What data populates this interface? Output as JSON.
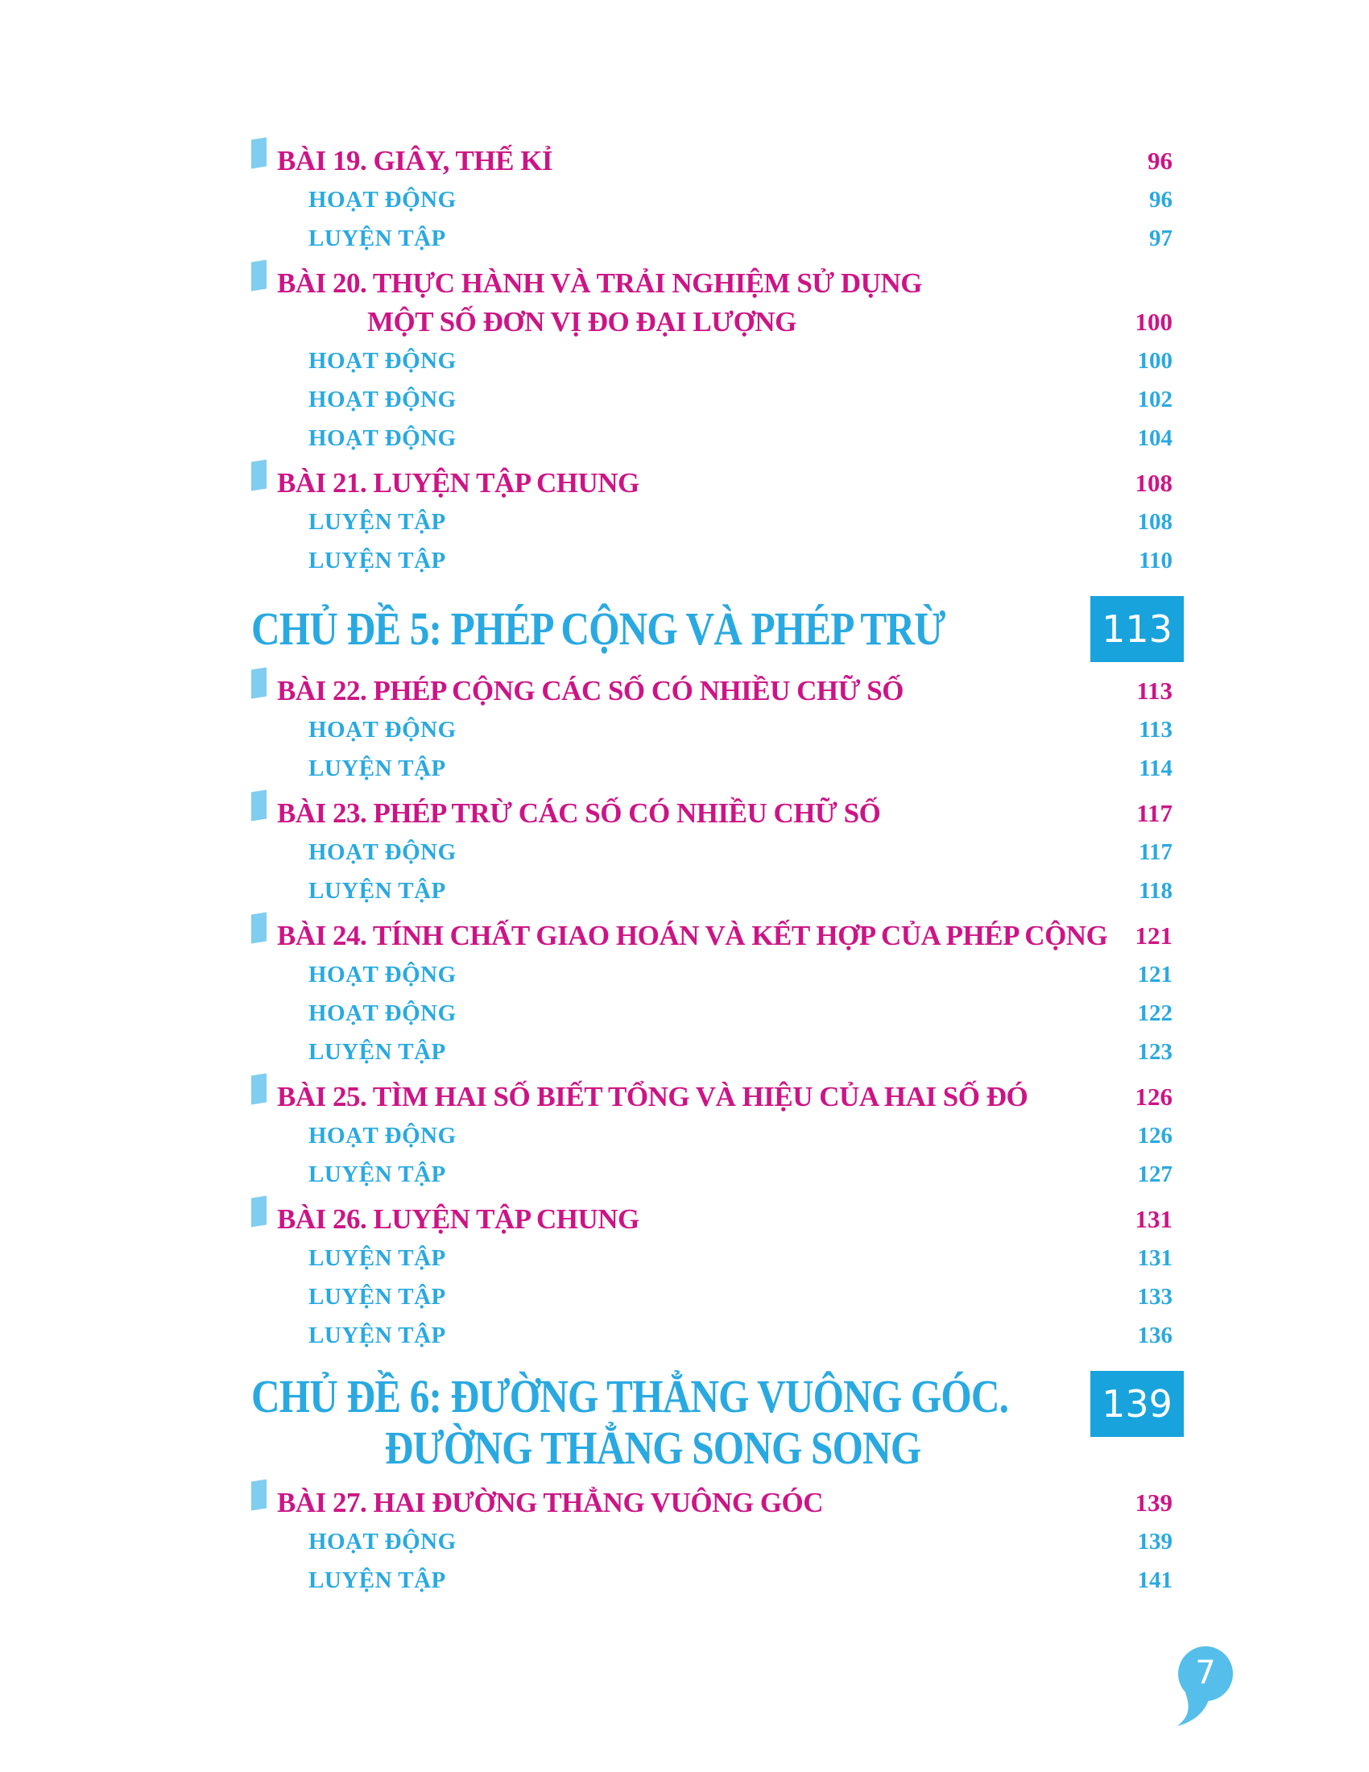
{
  "colors": {
    "pink": "#cd1486",
    "blue": "#29a9e1",
    "bullet": "#7fcdef",
    "box": "#18a3dd",
    "bubble": "#55beea"
  },
  "footer": {
    "page_number": "7"
  },
  "toc": {
    "blocks": [
      {
        "type": "lesson",
        "lines": [
          "BÀI 19. GIÂY, THẾ KỈ"
        ],
        "page": "96",
        "subs": [
          {
            "label": "HOẠT ĐỘNG",
            "page": "96"
          },
          {
            "label": "LUYỆN TẬP",
            "page": "97"
          }
        ]
      },
      {
        "type": "lesson",
        "lines": [
          "BÀI 20. THỰC HÀNH VÀ TRẢI NGHIỆM SỬ DỤNG",
          "MỘT SỐ ĐƠN VỊ ĐO ĐẠI LƯỢNG"
        ],
        "page": "100",
        "subs": [
          {
            "label": "HOẠT ĐỘNG",
            "page": "100"
          },
          {
            "label": "HOẠT ĐỘNG",
            "page": "102"
          },
          {
            "label": "HOẠT ĐỘNG",
            "page": "104"
          }
        ]
      },
      {
        "type": "lesson",
        "lines": [
          "BÀI 21. LUYỆN TẬP CHUNG"
        ],
        "page": "108",
        "subs": [
          {
            "label": "LUYỆN TẬP",
            "page": "108"
          },
          {
            "label": "LUYỆN TẬP",
            "page": "110"
          }
        ]
      },
      {
        "type": "chapter",
        "lines": [
          "CHỦ ĐỀ 5: PHÉP CỘNG VÀ PHÉP TRỪ"
        ],
        "page": "113"
      },
      {
        "type": "lesson",
        "lines": [
          "BÀI 22. PHÉP CỘNG CÁC SỐ CÓ NHIỀU CHỮ SỐ"
        ],
        "page": "113",
        "subs": [
          {
            "label": "HOẠT ĐỘNG",
            "page": "113"
          },
          {
            "label": "LUYỆN TẬP",
            "page": "114"
          }
        ]
      },
      {
        "type": "lesson",
        "lines": [
          "BÀI 23. PHÉP TRỪ CÁC SỐ CÓ NHIỀU CHỮ SỐ"
        ],
        "page": "117",
        "subs": [
          {
            "label": "HOẠT ĐỘNG",
            "page": "117"
          },
          {
            "label": "LUYỆN TẬP",
            "page": "118"
          }
        ]
      },
      {
        "type": "lesson",
        "lines": [
          "BÀI 24. TÍNH CHẤT GIAO HOÁN VÀ KẾT HỢP CỦA PHÉP CỘNG"
        ],
        "page": "121",
        "subs": [
          {
            "label": "HOẠT ĐỘNG",
            "page": "121"
          },
          {
            "label": "HOẠT ĐỘNG",
            "page": "122"
          },
          {
            "label": "LUYỆN TẬP",
            "page": "123"
          }
        ]
      },
      {
        "type": "lesson",
        "lines": [
          "BÀI 25. TÌM HAI SỐ BIẾT TỔNG VÀ HIỆU CỦA HAI SỐ ĐÓ"
        ],
        "page": "126",
        "subs": [
          {
            "label": "HOẠT ĐỘNG",
            "page": "126"
          },
          {
            "label": "LUYỆN TẬP",
            "page": "127"
          }
        ]
      },
      {
        "type": "lesson",
        "lines": [
          "BÀI 26. LUYỆN TẬP CHUNG"
        ],
        "page": "131",
        "subs": [
          {
            "label": "LUYỆN TẬP",
            "page": "131"
          },
          {
            "label": "LUYỆN TẬP",
            "page": "133"
          },
          {
            "label": "LUYỆN TẬP",
            "page": "136"
          }
        ]
      },
      {
        "type": "chapter",
        "lines": [
          "CHỦ ĐỀ 6: ĐƯỜNG THẲNG VUÔNG GÓC.",
          "ĐƯỜNG THẲNG SONG SONG"
        ],
        "page": "139"
      },
      {
        "type": "lesson",
        "lines": [
          "BÀI 27. HAI ĐƯỜNG THẲNG VUÔNG GÓC"
        ],
        "page": "139",
        "subs": [
          {
            "label": "HOẠT ĐỘNG",
            "page": "139"
          },
          {
            "label": "LUYỆN TẬP",
            "page": "141"
          }
        ]
      }
    ]
  }
}
